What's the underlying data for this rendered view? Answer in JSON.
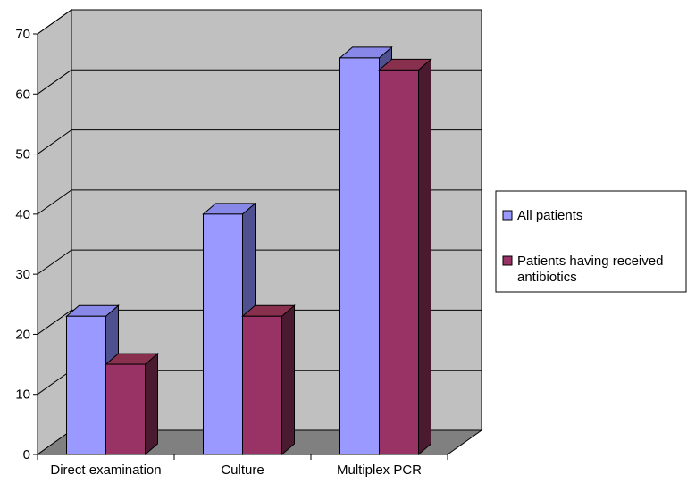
{
  "chart_data": {
    "type": "bar",
    "style": "3d-clustered",
    "title": "",
    "xlabel": "",
    "ylabel": "",
    "categories": [
      "Direct examination",
      "Culture",
      "Multiplex PCR"
    ],
    "series": [
      {
        "name": "All patients",
        "values": [
          23,
          40,
          66
        ],
        "color": "#9999ff"
      },
      {
        "name": "Patients having received antibiotics",
        "values": [
          15,
          23,
          64
        ],
        "color": "#993366"
      }
    ],
    "ylim": [
      0,
      70
    ],
    "yticks": [
      0,
      10,
      20,
      30,
      40,
      50,
      60,
      70
    ],
    "grid": true,
    "wall_color": "#c0c0c0",
    "floor_color": "#808080",
    "legend_position": "right"
  }
}
